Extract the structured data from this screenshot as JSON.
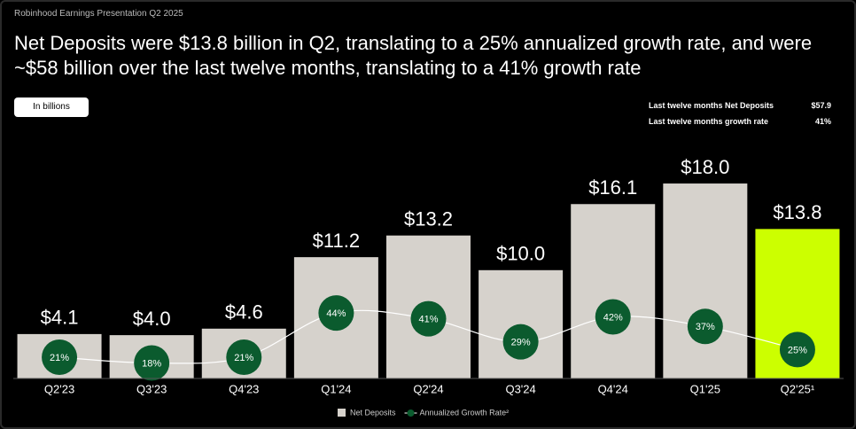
{
  "header": {
    "kicker": "Robinhood Earnings Presentation Q2 2025",
    "title": "Net Deposits were $13.8 billion in Q2, translating to a 25% annualized growth rate, and were ~$58 billion over the last twelve months, translating to a 41% growth rate",
    "unit_note": "In billions"
  },
  "summary": [
    {
      "label": "Last twelve months Net Deposits",
      "value": "$57.9"
    },
    {
      "label": "Last twelve months growth rate",
      "value": "41%"
    }
  ],
  "chart_data": {
    "type": "bar",
    "categories": [
      "Q2'23",
      "Q3'23",
      "Q4'23",
      "Q1'24",
      "Q2'24",
      "Q3'24",
      "Q4'24",
      "Q1'25",
      "Q2'25¹"
    ],
    "ylim": [
      0,
      20
    ],
    "y2lim": [
      0,
      100
    ],
    "series": [
      {
        "name": "Net Deposits",
        "type": "bar",
        "color": "#d6d2cc",
        "colors": [
          "#d6d2cc",
          "#d6d2cc",
          "#d6d2cc",
          "#d6d2cc",
          "#d6d2cc",
          "#d6d2cc",
          "#d6d2cc",
          "#d6d2cc",
          "#ccff00"
        ],
        "values": [
          4.1,
          4.0,
          4.6,
          11.2,
          13.2,
          10.0,
          16.1,
          18.0,
          13.8
        ],
        "value_labels": [
          "$4.1",
          "$4.0",
          "$4.6",
          "$11.2",
          "$13.2",
          "$10.0",
          "$16.1",
          "$18.0",
          "$13.8"
        ]
      },
      {
        "name": "Annualized Growth Rate²",
        "type": "line",
        "axis": "y2",
        "color": "#0b5b2e",
        "line_color": "#ffffff",
        "values": [
          21,
          18,
          21,
          44,
          41,
          29,
          42,
          37,
          25
        ],
        "value_labels": [
          "21%",
          "18%",
          "21%",
          "44%",
          "41%",
          "29%",
          "42%",
          "37%",
          "25%"
        ]
      }
    ]
  }
}
